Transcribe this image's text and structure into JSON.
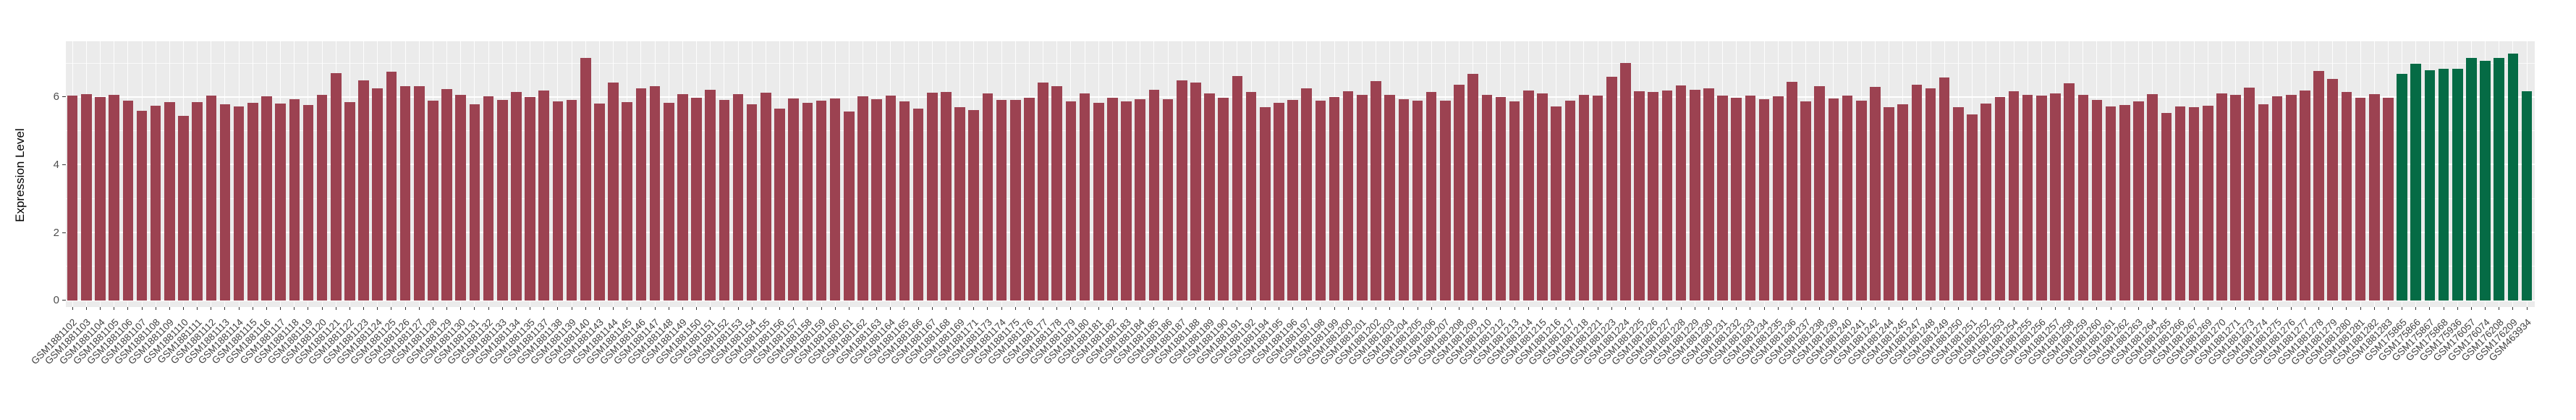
{
  "chart_data": {
    "type": "bar",
    "title": "",
    "xlabel": "",
    "ylabel": "Expression Level",
    "y_axis": {
      "ticks": [
        0,
        2,
        4,
        6
      ],
      "minor_ticks": [
        1,
        3,
        5,
        7
      ],
      "ylim": [
        0,
        7.65
      ]
    },
    "legend": "none",
    "grid": "on",
    "style": {
      "bar_color": "#9C4251",
      "highlight_color": "#056B45",
      "panel_bg": "#EBEBEB",
      "grid_color": "#FFFFFF",
      "tick_color": "#333333",
      "label_color": "#404040"
    },
    "highlight_start_index": 168,
    "categories": [
      "GSM1881102",
      "GSM1881103",
      "GSM1881104",
      "GSM1881105",
      "GSM1881106",
      "GSM1881107",
      "GSM1881108",
      "GSM1881109",
      "GSM1881110",
      "GSM1881111",
      "GSM1881112",
      "GSM1881113",
      "GSM1881114",
      "GSM1881115",
      "GSM1881116",
      "GSM1881117",
      "GSM1881118",
      "GSM1881119",
      "GSM1881120",
      "GSM1881121",
      "GSM1881122",
      "GSM1881123",
      "GSM1881124",
      "GSM1881125",
      "GSM1881126",
      "GSM1881127",
      "GSM1881128",
      "GSM1881129",
      "GSM1881130",
      "GSM1881131",
      "GSM1881132",
      "GSM1881133",
      "GSM1881134",
      "GSM1881135",
      "GSM1881137",
      "GSM1881138",
      "GSM1881139",
      "GSM1881140",
      "GSM1881143",
      "GSM1881144",
      "GSM1881145",
      "GSM1881146",
      "GSM1881147",
      "GSM1881148",
      "GSM1881149",
      "GSM1881150",
      "GSM1881151",
      "GSM1881152",
      "GSM1881153",
      "GSM1881154",
      "GSM1881155",
      "GSM1881156",
      "GSM1881157",
      "GSM1881158",
      "GSM1881159",
      "GSM1881160",
      "GSM1881161",
      "GSM1881162",
      "GSM1881163",
      "GSM1881164",
      "GSM1881165",
      "GSM1881166",
      "GSM1881167",
      "GSM1881168",
      "GSM1881169",
      "GSM1881171",
      "GSM1881173",
      "GSM1881174",
      "GSM1881175",
      "GSM1881176",
      "GSM1881177",
      "GSM1881178",
      "GSM1881179",
      "GSM1881180",
      "GSM1881181",
      "GSM1881182",
      "GSM1881183",
      "GSM1881184",
      "GSM1881185",
      "GSM1881186",
      "GSM1881187",
      "GSM1881188",
      "GSM1881189",
      "GSM1881190",
      "GSM1881191",
      "GSM1881192",
      "GSM1881194",
      "GSM1881195",
      "GSM1881196",
      "GSM1881197",
      "GSM1881198",
      "GSM1881199",
      "GSM1881200",
      "GSM1881201",
      "GSM1881202",
      "GSM1881203",
      "GSM1881204",
      "GSM1881205",
      "GSM1881206",
      "GSM1881207",
      "GSM1881208",
      "GSM1881209",
      "GSM1881210",
      "GSM1881212",
      "GSM1881213",
      "GSM1881214",
      "GSM1881215",
      "GSM1881216",
      "GSM1881217",
      "GSM1881218",
      "GSM1881221",
      "GSM1881223",
      "GSM1881224",
      "GSM1881225",
      "GSM1881226",
      "GSM1881227",
      "GSM1881228",
      "GSM1881229",
      "GSM1881230",
      "GSM1881231",
      "GSM1881232",
      "GSM1881233",
      "GSM1881234",
      "GSM1881235",
      "GSM1881236",
      "GSM1881237",
      "GSM1881238",
      "GSM1881239",
      "GSM1881240",
      "GSM1881241",
      "GSM1881242",
      "GSM1881244",
      "GSM1881245",
      "GSM1881247",
      "GSM1881248",
      "GSM1881249",
      "GSM1881250",
      "GSM1881251",
      "GSM1881252",
      "GSM1881253",
      "GSM1881254",
      "GSM1881255",
      "GSM1881256",
      "GSM1881257",
      "GSM1881258",
      "GSM1881259",
      "GSM1881260",
      "GSM1881261",
      "GSM1881262",
      "GSM1881263",
      "GSM1881264",
      "GSM1881265",
      "GSM1881266",
      "GSM1881267",
      "GSM1881269",
      "GSM1881270",
      "GSM1881271",
      "GSM1881273",
      "GSM1881274",
      "GSM1881275",
      "GSM1881276",
      "GSM1881277",
      "GSM1881278",
      "GSM1881279",
      "GSM1881280",
      "GSM1881281",
      "GSM1881282",
      "GSM1881283",
      "GSM175865",
      "GSM175866",
      "GSM175867",
      "GSM175868",
      "GSM175936",
      "GSM176057",
      "GSM176074",
      "GSM176208",
      "GSM176209",
      "GSM463934"
    ],
    "values": [
      6.04,
      6.08,
      6.0,
      6.05,
      5.9,
      5.59,
      5.75,
      5.85,
      5.45,
      5.84,
      6.04,
      5.78,
      5.72,
      5.83,
      6.02,
      5.8,
      5.94,
      5.76,
      6.07,
      6.7,
      5.85,
      6.49,
      6.26,
      6.75,
      6.31,
      6.31,
      5.89,
      6.24,
      6.06,
      5.78,
      6.02,
      5.92,
      6.14,
      5.99,
      6.19,
      5.87,
      5.91,
      7.15,
      5.8,
      6.42,
      5.85,
      6.25,
      6.32,
      5.82,
      6.08,
      5.97,
      6.2,
      5.91,
      6.08,
      5.79,
      6.13,
      5.65,
      5.95,
      5.83,
      5.89,
      5.96,
      5.57,
      6.01,
      5.94,
      6.03,
      5.87,
      5.65,
      6.12,
      6.15,
      5.7,
      5.62,
      6.1,
      5.91,
      5.92,
      5.98,
      6.43,
      6.31,
      5.86,
      6.1,
      5.83,
      5.97,
      5.86,
      5.94,
      6.21,
      5.93,
      6.48,
      6.42,
      6.1,
      5.97,
      6.62,
      6.14,
      5.7,
      5.82,
      5.91,
      6.25,
      5.88,
      5.99,
      6.16,
      6.07,
      6.46,
      6.05,
      5.94,
      5.88,
      6.15,
      5.89,
      6.36,
      6.68,
      6.06,
      5.99,
      5.86,
      6.19,
      6.1,
      5.71,
      5.88,
      6.07,
      6.03,
      6.6,
      7.0,
      6.17,
      6.14,
      6.19,
      6.34,
      6.21,
      6.25,
      6.03,
      5.97,
      6.04,
      5.93,
      6.02,
      6.45,
      5.87,
      6.31,
      5.95,
      6.03,
      5.9,
      6.3,
      5.69,
      5.78,
      6.36,
      6.25,
      6.58,
      5.69,
      5.49,
      5.8,
      6.0,
      6.17,
      6.06,
      6.03,
      6.1,
      6.4,
      6.06,
      5.91,
      5.72,
      5.77,
      5.87,
      6.08,
      5.52,
      5.71,
      5.7,
      5.75,
      6.11,
      6.06,
      6.28,
      5.78,
      6.02,
      6.06,
      6.18,
      6.77,
      6.52,
      6.15,
      5.97,
      6.08,
      5.97,
      6.69,
      6.98,
      6.78,
      6.83,
      6.83,
      7.15,
      7.06,
      7.15,
      7.27,
      6.17
    ]
  }
}
